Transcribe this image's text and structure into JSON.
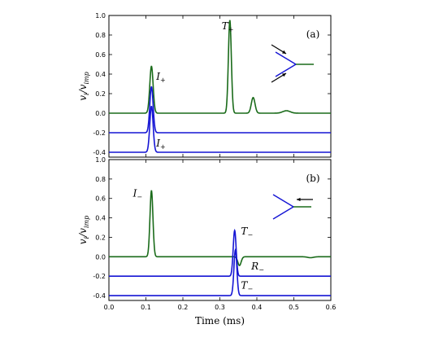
{
  "chart_data": [
    {
      "type": "line",
      "panel": "(a)",
      "ylabel": "v_i / v_imp",
      "xlim": [
        0.0,
        0.6
      ],
      "ylim": [
        -0.45,
        1.0
      ],
      "yticks": [
        1.0,
        0.8,
        0.6,
        0.4,
        0.2,
        0.0,
        -0.2,
        -0.4
      ],
      "ytick_labels": [
        "1.0",
        "0.8",
        "0.6",
        "0.4",
        "0.2",
        "0.0",
        "-0.2",
        "-0.4"
      ],
      "grid": false,
      "series": [
        {
          "color": "#1a6b1a",
          "baseline": 0.0,
          "peaks": [
            {
              "x": 0.115,
              "amp": 0.48,
              "width": 0.0045
            },
            {
              "x": 0.327,
              "amp": 0.95,
              "width": 0.004
            },
            {
              "x": 0.39,
              "amp": 0.16,
              "width": 0.005
            },
            {
              "x": 0.48,
              "amp": 0.025,
              "width": 0.01
            }
          ]
        },
        {
          "color": "#1515d4",
          "baseline": -0.2,
          "peaks": [
            {
              "x": 0.115,
              "amp": 0.47,
              "width": 0.0045
            }
          ]
        },
        {
          "color": "#1515d4",
          "baseline": -0.4,
          "peaks": [
            {
              "x": 0.115,
              "amp": 0.47,
              "width": 0.0045
            }
          ]
        }
      ],
      "annotations": [
        {
          "base": "T",
          "sub": "+",
          "x": 0.305,
          "y": 0.86
        },
        {
          "base": "I",
          "sub": "+",
          "x": 0.128,
          "y": 0.34
        },
        {
          "base": "I",
          "sub": "+",
          "x": 0.128,
          "y": -0.34
        }
      ],
      "inset": "arrows-in"
    },
    {
      "type": "line",
      "panel": "(b)",
      "xlabel": "Time (ms)",
      "ylabel": "v_i / v_imp",
      "xlim": [
        0.0,
        0.6
      ],
      "ylim": [
        -0.45,
        1.0
      ],
      "xticks": [
        0.0,
        0.1,
        0.2,
        0.3,
        0.4,
        0.5,
        0.6
      ],
      "xtick_labels": [
        "0.0",
        "0.1",
        "0.2",
        "0.3",
        "0.4",
        "0.5",
        "0.6"
      ],
      "yticks": [
        1.0,
        0.8,
        0.6,
        0.4,
        0.2,
        0.0,
        -0.2,
        -0.4
      ],
      "ytick_labels": [
        "1.0",
        "0.8",
        "0.6",
        "0.4",
        "0.2",
        "0.0",
        "-0.2",
        "-0.4"
      ],
      "grid": false,
      "series": [
        {
          "color": "#1a6b1a",
          "baseline": 0.0,
          "peaks": [
            {
              "x": 0.115,
              "amp": 0.68,
              "width": 0.004
            },
            {
              "x": 0.335,
              "amp": 0.0,
              "width": 0.004
            },
            {
              "x": 0.353,
              "amp": -0.09,
              "width": 0.0045
            },
            {
              "x": 0.545,
              "amp": -0.01,
              "width": 0.008
            }
          ]
        },
        {
          "color": "#1515d4",
          "baseline": -0.2,
          "peaks": [
            {
              "x": 0.34,
              "amp": 0.47,
              "width": 0.004
            }
          ]
        },
        {
          "color": "#1515d4",
          "baseline": -0.4,
          "peaks": [
            {
              "x": 0.342,
              "amp": 0.47,
              "width": 0.004
            }
          ]
        }
      ],
      "annotations": [
        {
          "base": "I",
          "sub": "−",
          "x": 0.065,
          "y": 0.62
        },
        {
          "base": "T",
          "sub": "−",
          "x": 0.357,
          "y": 0.23
        },
        {
          "base": "R",
          "sub": "−",
          "x": 0.385,
          "y": -0.13
        },
        {
          "base": "T",
          "sub": "−",
          "x": 0.357,
          "y": -0.33
        }
      ],
      "inset": "arrow-left"
    }
  ]
}
